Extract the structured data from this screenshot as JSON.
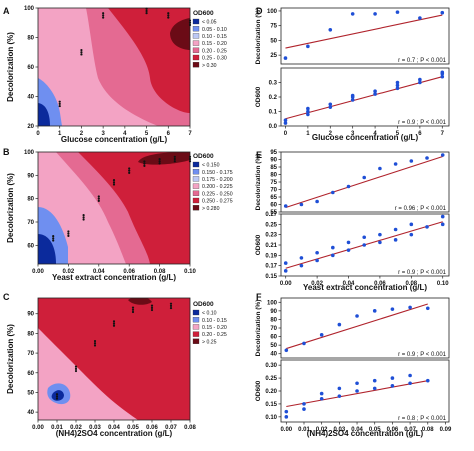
{
  "colors": {
    "c_low": "#0b2a9c",
    "c_mid_low": "#6f8ff0",
    "c_mid": "#f3a3c4",
    "c_mid_high": "#e46a92",
    "c_high": "#cf1f3a",
    "c_max": "#6b0b16",
    "reg_line": "#b0232c",
    "dot": "#1f4fd6"
  },
  "panels": {
    "A": {
      "letter": "A",
      "xlabel": "Glucose concentration (g/L)",
      "ylabel": "Decolorization (%)",
      "xticks": [
        "0",
        "1",
        "2",
        "3",
        "4",
        "5",
        "6",
        "7"
      ],
      "yticks": [
        "20",
        "40",
        "60",
        "80",
        "100"
      ],
      "legend_title": "OD600",
      "legend": [
        "< 0.05",
        "0.05 - 0.10",
        "0.10 - 0.15",
        "0.15 - 0.20",
        "0.20 - 0.25",
        "0.25 - 0.30",
        "> 0.30"
      ]
    },
    "B": {
      "letter": "B",
      "xlabel": "Yeast extract concentration (g/L)",
      "ylabel": "Decolorization (%)",
      "xticks": [
        "0.00",
        "0.02",
        "0.04",
        "0.06",
        "0.08",
        "0.10"
      ],
      "yticks": [
        "60",
        "70",
        "80",
        "90",
        "100"
      ],
      "legend_title": "OD600",
      "legend": [
        "< 0.150",
        "0.150 - 0.175",
        "0.175 - 0.200",
        "0.200 - 0.225",
        "0.225 - 0.250",
        "0.250 - 0.275",
        "> 0.280"
      ]
    },
    "C": {
      "letter": "C",
      "xlabel": "(NH4)2SO4 concentration (g/L)",
      "ylabel": "Decolorization (%)",
      "xticks": [
        "0.00",
        "0.01",
        "0.02",
        "0.03",
        "0.04",
        "0.05",
        "0.06",
        "0.07",
        "0.08"
      ],
      "yticks": [
        "40",
        "50",
        "60",
        "70",
        "80",
        "90"
      ],
      "legend_title": "OD600",
      "legend": [
        "< 0.10",
        "0.10 - 0.15",
        "0.15 - 0.20",
        "0.20 - 0.25",
        "> 0.25"
      ]
    },
    "D": {
      "letter": "D",
      "xlabel": "Glucose concentration (g/L)",
      "top_ylabel": "Decolorization (%)",
      "bottom_ylabel": "OD600",
      "xticks": [
        "0",
        "1",
        "2",
        "3",
        "4",
        "5",
        "6",
        "7"
      ],
      "top_yticks": [
        "25",
        "50",
        "75",
        "100"
      ],
      "bottom_yticks": [
        "0.0",
        "0.1",
        "0.2",
        "0.3"
      ],
      "top_stat": "r = 0.7 ; P < 0.001",
      "bottom_stat": "r = 0.9 ; P < 0.001"
    },
    "E": {
      "letter": "E",
      "xlabel": "Yeast extract concentration (g/L)",
      "top_ylabel": "Decolorization (%)",
      "bottom_ylabel": "OD600",
      "xticks": [
        "0.00",
        "0.02",
        "0.04",
        "0.06",
        "0.08",
        "0.10"
      ],
      "top_yticks": [
        "55",
        "60",
        "65",
        "70",
        "75",
        "80",
        "85",
        "90",
        "95"
      ],
      "bottom_yticks": [
        "0.15",
        "0.17",
        "0.19",
        "0.21",
        "0.23",
        "0.25",
        "0.27"
      ],
      "top_stat": "r = 0.96 ; P < 0.001",
      "bottom_stat": "r = 0.9 ; P < 0.001"
    },
    "F": {
      "letter": "F",
      "xlabel": "(NH4)2SO4 concentration (g/L)",
      "top_ylabel": "Decolorization (%)",
      "bottom_ylabel": "OD600",
      "xticks": [
        "0.00",
        "0.01",
        "0.02",
        "0.03",
        "0.04",
        "0.05",
        "0.06",
        "0.07",
        "0.08",
        "0.09"
      ],
      "top_yticks": [
        "40",
        "50",
        "60",
        "70",
        "80",
        "90",
        "100"
      ],
      "bottom_yticks": [
        "0.10",
        "0.15",
        "0.20",
        "0.25",
        "0.30"
      ],
      "top_stat": "r = 0.9 ; P < 0.001",
      "bottom_stat": "r = 0.8 ; P < 0.001"
    }
  },
  "chart_data": [
    {
      "type": "contour",
      "panel": "A",
      "xlim": [
        0,
        7
      ],
      "ylim": [
        20,
        100
      ],
      "points": [
        [
          1,
          35
        ],
        [
          2,
          70
        ],
        [
          3,
          95
        ],
        [
          5,
          98
        ],
        [
          6,
          95
        ],
        [
          7,
          90
        ]
      ]
    },
    {
      "type": "contour",
      "panel": "B",
      "xlim": [
        0,
        0.1
      ],
      "ylim": [
        52,
        100
      ],
      "points": [
        [
          0.01,
          63
        ],
        [
          0.02,
          65
        ],
        [
          0.03,
          72
        ],
        [
          0.04,
          80
        ],
        [
          0.05,
          87
        ],
        [
          0.06,
          92
        ],
        [
          0.07,
          95
        ],
        [
          0.08,
          96
        ],
        [
          0.09,
          97
        ],
        [
          0.1,
          97
        ]
      ]
    },
    {
      "type": "contour",
      "panel": "C",
      "xlim": [
        0,
        0.08
      ],
      "ylim": [
        36,
        98
      ],
      "points": [
        [
          0.01,
          48
        ],
        [
          0.02,
          62
        ],
        [
          0.03,
          75
        ],
        [
          0.04,
          85
        ],
        [
          0.05,
          92
        ],
        [
          0.06,
          93
        ],
        [
          0.07,
          94
        ]
      ]
    },
    {
      "type": "scatter",
      "panel": "D-top",
      "xlim": [
        -0.2,
        7.3
      ],
      "ylim": [
        10,
        105
      ],
      "x": [
        0,
        1,
        2,
        3,
        4,
        5,
        6,
        7
      ],
      "y": [
        20,
        40,
        68,
        95,
        95,
        98,
        88,
        97
      ],
      "fit": [
        [
          0,
          37
        ],
        [
          7,
          93
        ]
      ]
    },
    {
      "type": "scatter",
      "panel": "D-bottom",
      "xlim": [
        -0.2,
        7.3
      ],
      "ylim": [
        0,
        0.4
      ],
      "x": [
        0,
        0,
        1,
        1,
        1,
        2,
        2,
        3,
        3,
        3,
        4,
        4,
        5,
        5,
        5,
        6,
        6,
        7,
        7,
        7
      ],
      "y": [
        0.02,
        0.04,
        0.08,
        0.1,
        0.12,
        0.13,
        0.15,
        0.18,
        0.2,
        0.21,
        0.22,
        0.24,
        0.26,
        0.28,
        0.3,
        0.3,
        0.32,
        0.34,
        0.36,
        0.37
      ],
      "fit": [
        [
          0,
          0.05
        ],
        [
          7,
          0.34
        ]
      ]
    },
    {
      "type": "scatter",
      "panel": "E-top",
      "xlim": [
        -0.003,
        0.104
      ],
      "ylim": [
        55,
        95
      ],
      "x": [
        0,
        0.01,
        0.02,
        0.03,
        0.04,
        0.05,
        0.06,
        0.07,
        0.08,
        0.09,
        0.1
      ],
      "y": [
        59,
        60,
        62,
        68,
        72,
        78,
        84,
        87,
        89,
        91,
        93
      ],
      "fit": [
        [
          0,
          58
        ],
        [
          0.1,
          92
        ]
      ]
    },
    {
      "type": "scatter",
      "panel": "E-bottom",
      "xlim": [
        -0.003,
        0.104
      ],
      "ylim": [
        0.15,
        0.27
      ],
      "x": [
        0,
        0,
        0.01,
        0.01,
        0.02,
        0.02,
        0.03,
        0.03,
        0.04,
        0.04,
        0.05,
        0.05,
        0.06,
        0.06,
        0.07,
        0.07,
        0.08,
        0.08,
        0.09,
        0.1,
        0.1
      ],
      "y": [
        0.16,
        0.175,
        0.17,
        0.185,
        0.18,
        0.195,
        0.19,
        0.205,
        0.2,
        0.215,
        0.21,
        0.225,
        0.215,
        0.23,
        0.22,
        0.24,
        0.23,
        0.25,
        0.245,
        0.25,
        0.265
      ],
      "fit": [
        [
          0,
          0.165
        ],
        [
          0.1,
          0.255
        ]
      ]
    },
    {
      "type": "scatter",
      "panel": "F-top",
      "xlim": [
        -0.003,
        0.092
      ],
      "ylim": [
        35,
        105
      ],
      "x": [
        0,
        0.01,
        0.02,
        0.03,
        0.04,
        0.05,
        0.06,
        0.07,
        0.08
      ],
      "y": [
        44,
        52,
        62,
        74,
        84,
        90,
        92,
        94,
        93
      ],
      "fit": [
        [
          0,
          46
        ],
        [
          0.08,
          98
        ]
      ]
    },
    {
      "type": "scatter",
      "panel": "F-bottom",
      "xlim": [
        -0.003,
        0.092
      ],
      "ylim": [
        0.08,
        0.32
      ],
      "x": [
        0,
        0,
        0.01,
        0.01,
        0.02,
        0.02,
        0.03,
        0.03,
        0.04,
        0.04,
        0.05,
        0.05,
        0.06,
        0.06,
        0.07,
        0.07,
        0.08
      ],
      "y": [
        0.1,
        0.12,
        0.13,
        0.15,
        0.17,
        0.19,
        0.18,
        0.21,
        0.2,
        0.23,
        0.21,
        0.24,
        0.22,
        0.25,
        0.23,
        0.26,
        0.24
      ],
      "fit": [
        [
          0,
          0.14
        ],
        [
          0.08,
          0.24
        ]
      ]
    }
  ]
}
